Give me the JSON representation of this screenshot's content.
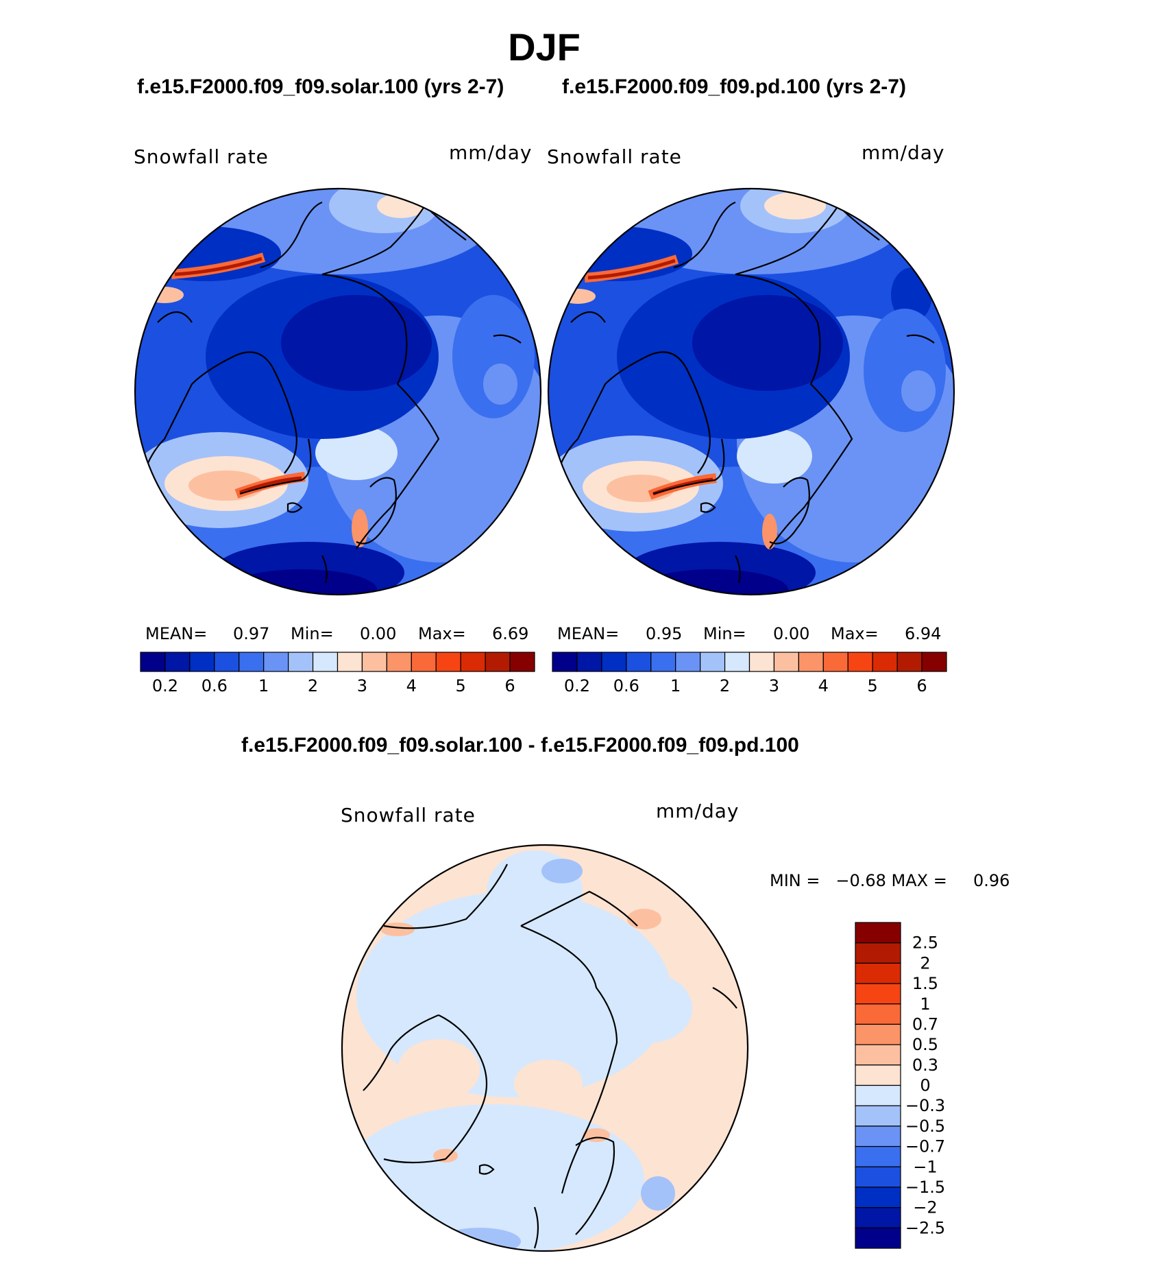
{
  "title": "DJF",
  "panels": [
    {
      "case": "f.e15.F2000.f09_f09.solar.100 (yrs 2-7)",
      "variable": "Snowfall rate",
      "units": "mm/day",
      "stats": {
        "mean_label": "MEAN=",
        "mean": "0.97",
        "min_label": "Min=",
        "min": "0.00",
        "max_label": "Max=",
        "max": "6.69"
      }
    },
    {
      "case": "f.e15.F2000.f09_f09.pd.100 (yrs 2-7)",
      "variable": "Snowfall rate",
      "units": "mm/day",
      "stats": {
        "mean_label": "MEAN=",
        "mean": "0.95",
        "min_label": "Min=",
        "min": "0.00",
        "max_label": "Max=",
        "max": "6.94"
      }
    }
  ],
  "diff": {
    "case": "f.e15.F2000.f09_f09.solar.100 - f.e15.F2000.f09_f09.pd.100",
    "variable": "Snowfall rate",
    "units": "mm/day",
    "stats_text": "MIN =   −0.68 MAX =     0.96"
  },
  "colorbar_abs": {
    "colors": [
      "#00008b",
      "#0016a6",
      "#002fc4",
      "#1c50e0",
      "#3a6fef",
      "#6a93f5",
      "#a4c2fa",
      "#d6e8fd",
      "#fde3d2",
      "#fcc0a0",
      "#fb9468",
      "#fa6a38",
      "#f64513",
      "#da2b05",
      "#b21b02",
      "#870000"
    ],
    "tick_labels": [
      "0.2",
      "0.6",
      "1",
      "2",
      "3",
      "4",
      "5",
      "6"
    ]
  },
  "colorbar_diff": {
    "colors": [
      "#870000",
      "#b21b02",
      "#da2b05",
      "#f64513",
      "#fa6a38",
      "#fb9468",
      "#fcc0a0",
      "#fde3d2",
      "#d6e8fd",
      "#a4c2fa",
      "#6a93f5",
      "#3a6fef",
      "#1c50e0",
      "#002fc4",
      "#0016a6",
      "#00008b"
    ],
    "tick_labels": [
      "2.5",
      "2",
      "1.5",
      "1",
      "0.7",
      "0.5",
      "0.3",
      "0",
      "−0.3",
      "−0.5",
      "−0.7",
      "−1",
      "−1.5",
      "−2",
      "−2.5"
    ]
  }
}
